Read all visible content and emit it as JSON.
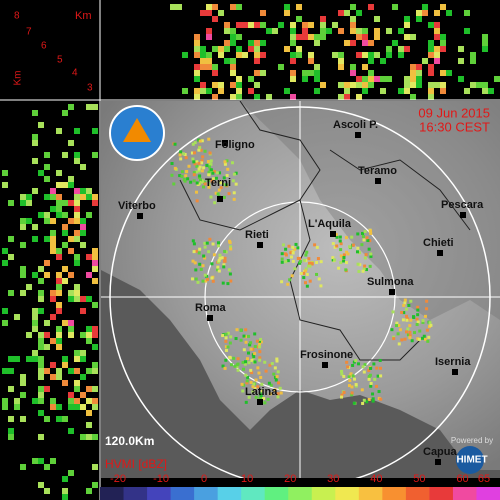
{
  "header": {
    "date": "09 Jun 2015",
    "time": "16:30 CEST"
  },
  "heights": {
    "unit": "Km",
    "labels": [
      8,
      7,
      6,
      5,
      4,
      3
    ],
    "side_unit": "Km"
  },
  "cities": [
    {
      "name": "Foligno"
    },
    {
      "name": "Ascoli P."
    },
    {
      "name": "Teramo"
    },
    {
      "name": "Terni"
    },
    {
      "name": "Viterbo"
    },
    {
      "name": "Rieti"
    },
    {
      "name": "L'Aquila"
    },
    {
      "name": "Pescara"
    },
    {
      "name": "Chieti"
    },
    {
      "name": "Sulmona"
    },
    {
      "name": "Roma"
    },
    {
      "name": "Frosinone"
    },
    {
      "name": "Isernia"
    },
    {
      "name": "Latina"
    },
    {
      "name": "Capua"
    }
  ],
  "range": "120.0Km",
  "legend": {
    "title": "HVMI [dBZ]",
    "ticks": [
      -20,
      -10,
      0,
      10,
      20,
      30,
      40,
      50,
      60,
      65
    ]
  },
  "logo": {
    "powered": "Powered by",
    "brand": "HIMET"
  }
}
